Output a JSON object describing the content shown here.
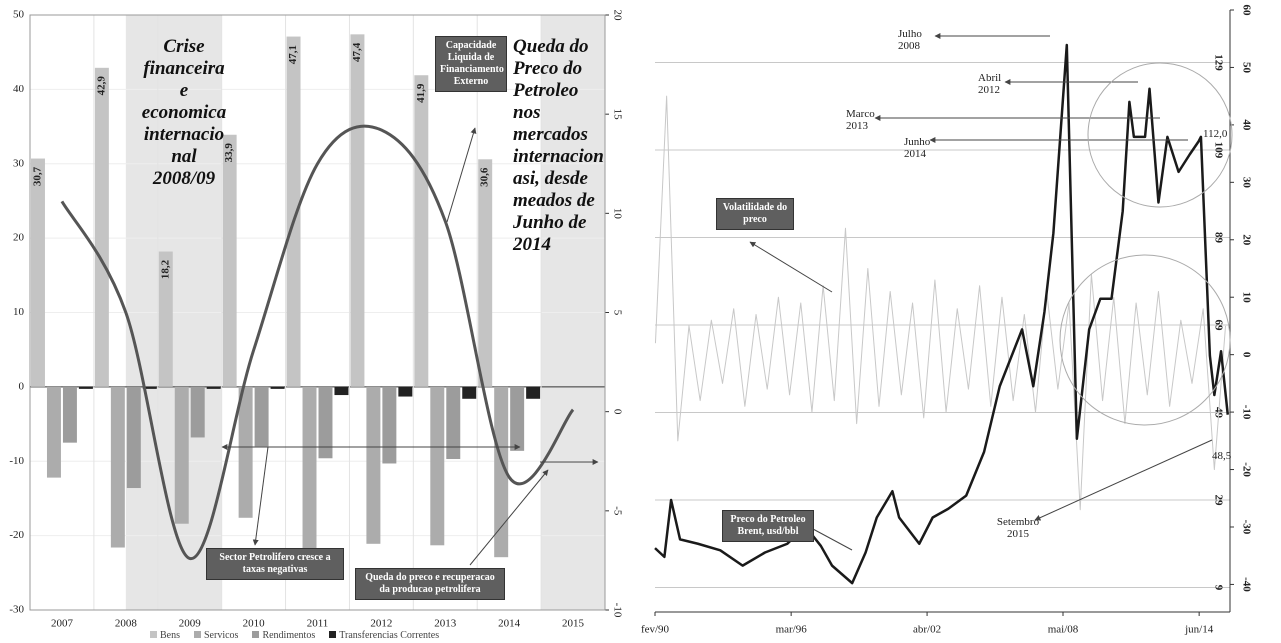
{
  "chart_data": [
    {
      "type": "bar",
      "categories": [
        "2007",
        "2008",
        "2009",
        "2010",
        "2011",
        "2012",
        "2013",
        "2014",
        "2015"
      ],
      "series": [
        {
          "name": "Bens",
          "color": "#c4c4c4",
          "values": [
            30.7,
            42.9,
            18.2,
            33.9,
            47.1,
            47.4,
            41.9,
            30.6,
            null
          ],
          "value_labels": [
            "30,7",
            "42,9",
            "18,2",
            "33,9",
            "47,1",
            "47,4",
            "41,9",
            "30,6",
            null
          ]
        },
        {
          "name": "Servicos",
          "color": "#acacac",
          "values": [
            -12.2,
            -21.6,
            -18.4,
            -17.6,
            -22.7,
            -21.1,
            -21.3,
            -22.9,
            null
          ]
        },
        {
          "name": "Rendimentos",
          "color": "#9c9c9c",
          "values": [
            -7.5,
            -13.6,
            -6.8,
            -8.0,
            -9.6,
            -10.3,
            -9.7,
            -8.6,
            null
          ]
        },
        {
          "name": "Transferencias Correntes",
          "color": "#222222",
          "values": [
            -0.2,
            -0.2,
            -0.2,
            -0.2,
            -1.1,
            -1.3,
            -1.6,
            -1.6,
            null
          ]
        },
        {
          "name": "Capacidade Liquida de Financiamento Externo",
          "type": "line",
          "axis": "y2",
          "color": "#555555",
          "values": [
            10.6,
            5.0,
            -7.4,
            3.1,
            12.5,
            14.2,
            9.6,
            -3.3,
            0.1
          ]
        }
      ],
      "ylim": [
        -30,
        50
      ],
      "yticks": [
        -30,
        -20,
        -10,
        0,
        10,
        20,
        30,
        40,
        50
      ],
      "y2lim": [
        -10,
        20
      ],
      "y2ticks": [
        -10,
        -5,
        0,
        5,
        10,
        15,
        20
      ],
      "annotations": [
        "Crise financeira e economica internacio nal 2008/09",
        "Queda do Preco do Petroleo nos mercados internacion asi, desde meados de Junho de 2014",
        "Sector Petrolifero cresce a taxas negativas",
        "Queda do preco e recuperacao da producao petrolifera"
      ]
    },
    {
      "type": "line",
      "series": [
        {
          "name": "Volatilidade do preco",
          "axis": "y2",
          "color": "#c8c8c8",
          "x": [
            1990.1,
            1990.6,
            1991.1,
            1991.6,
            1992.1,
            1992.6,
            1993.1,
            1993.6,
            1994.1,
            1994.6,
            1995.1,
            1995.6,
            1996.1,
            1996.6,
            1997.1,
            1997.6,
            1998.1,
            1998.6,
            1999.1,
            1999.6,
            2000.1,
            2000.6,
            2001.1,
            2001.6,
            2002.1,
            2002.6,
            2003.1,
            2003.6,
            2004.1,
            2004.6,
            2005.1,
            2005.6,
            2006.1,
            2006.6,
            2007.1,
            2007.6,
            2008.1,
            2008.6,
            2009.1,
            2009.6,
            2010.1,
            2010.6,
            2011.1,
            2011.6,
            2012.1,
            2012.6,
            2013.1,
            2013.6,
            2014.1,
            2014.6,
            2015.1,
            2015.6
          ],
          "values": [
            2,
            45,
            -15,
            5,
            -8,
            6,
            -5,
            8,
            -9,
            7,
            -6,
            10,
            -7,
            9,
            -10,
            12,
            -8,
            22,
            -12,
            15,
            -9,
            11,
            -7,
            9,
            -11,
            13,
            -10,
            8,
            -6,
            12,
            -9,
            10,
            -8,
            7,
            -10,
            11,
            -6,
            9,
            -27,
            14,
            -8,
            10,
            -12,
            9,
            -7,
            11,
            -9,
            6,
            -5,
            8,
            -20,
            5
          ]
        },
        {
          "name": "Preco do Petroleo Brent, usd/bbl",
          "color": "#1a1a1a",
          "x": [
            1990.08,
            1990.5,
            1990.8,
            1991.2,
            1992.0,
            1993.0,
            1994.0,
            1995.0,
            1996.0,
            1996.8,
            1997.5,
            1998.0,
            1998.9,
            1999.5,
            2000.0,
            2000.7,
            2001.0,
            2001.9,
            2002.5,
            2003.2,
            2004.0,
            2004.8,
            2005.5,
            2006.5,
            2007.0,
            2007.5,
            2007.9,
            2008.5,
            2008.95,
            2009.5,
            2010.0,
            2010.5,
            2011.0,
            2011.3,
            2011.5,
            2012.0,
            2012.2,
            2012.6,
            2013.0,
            2013.5,
            2014.0,
            2014.4,
            2014.5,
            2014.9,
            2015.1,
            2015.4,
            2015.7
          ],
          "values": [
            18,
            16,
            29,
            20,
            19,
            17.5,
            14,
            17,
            19,
            23,
            18.5,
            14,
            10,
            17,
            25,
            31,
            25,
            19,
            25,
            27,
            30,
            40,
            55,
            68,
            55,
            72,
            90,
            133,
            43,
            68,
            75,
            75,
            95,
            120,
            112,
            112,
            123,
            97,
            112,
            104,
            108,
            111,
            112,
            62,
            53,
            63,
            48.5
          ]
        }
      ],
      "xlim": [
        1990.08,
        2015.8
      ],
      "xticks": [
        {
          "value": 1990.08,
          "label": "fev/90"
        },
        {
          "value": 1996.17,
          "label": "mar/96"
        },
        {
          "value": 2002.25,
          "label": "abr/02"
        },
        {
          "value": 2008.33,
          "label": "mai/08"
        },
        {
          "value": 2014.42,
          "label": "jun/14"
        }
      ],
      "ylim": [
        3.4,
        141
      ],
      "yticks": [
        9,
        29,
        49,
        69,
        89,
        109,
        129
      ],
      "y2lim": [
        -44.8,
        60
      ],
      "y2ticks": [
        -40,
        -30,
        -20,
        -10,
        0,
        10,
        20,
        30,
        40,
        50,
        60
      ],
      "annotations": [
        "Julho 2008",
        "Abril 2012",
        "Marco 2013",
        "Junho 2014",
        "112,0",
        "Setembro 2015",
        "48,5"
      ]
    }
  ]
}
